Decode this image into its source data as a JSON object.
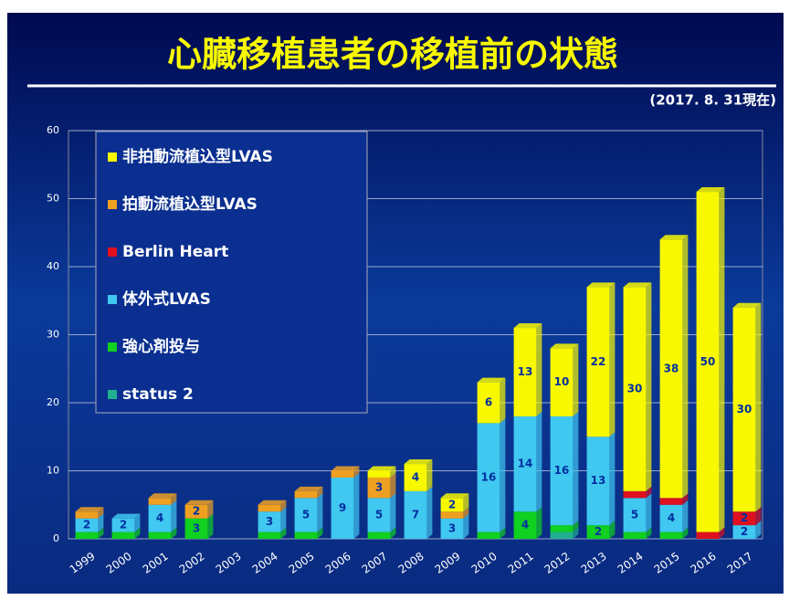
{
  "chart_data": {
    "type": "bar",
    "stacked": true,
    "title": "心臓移植患者の移植前の状態",
    "subtitle": "(2017. 8. 31現在)",
    "categories": [
      "1999",
      "2000",
      "2001",
      "2002",
      "2003",
      "2004",
      "2005",
      "2006",
      "2007",
      "2008",
      "2009",
      "2010",
      "2011",
      "2012",
      "2013",
      "2014",
      "2015",
      "2016",
      "2017"
    ],
    "series": [
      {
        "name": "status 2",
        "color": "#20b090",
        "values": [
          0,
          0,
          0,
          0,
          0,
          0,
          0,
          0,
          0,
          0,
          0,
          0,
          0,
          1,
          0,
          0,
          0,
          0,
          0
        ]
      },
      {
        "name": "強心剤投与",
        "color": "#10d020",
        "values": [
          1,
          1,
          1,
          3,
          0,
          1,
          1,
          0,
          1,
          0,
          0,
          1,
          4,
          1,
          2,
          1,
          1,
          0,
          0
        ]
      },
      {
        "name": "体外式LVAS",
        "color": "#40c8f0",
        "values": [
          2,
          2,
          4,
          0,
          0,
          3,
          5,
          9,
          5,
          7,
          3,
          16,
          14,
          16,
          13,
          5,
          4,
          0,
          2
        ]
      },
      {
        "name": "Berlin Heart",
        "color": "#e01020",
        "values": [
          0,
          0,
          0,
          0,
          0,
          0,
          0,
          0,
          0,
          0,
          0,
          0,
          0,
          0,
          0,
          1,
          1,
          1,
          2
        ]
      },
      {
        "name": "拍動流植込型LVAS",
        "color": "#f0a020",
        "values": [
          1,
          0,
          1,
          2,
          0,
          1,
          1,
          1,
          3,
          0,
          1,
          0,
          0,
          0,
          0,
          0,
          0,
          0,
          0
        ]
      },
      {
        "name": "非拍動流植込型LVAS",
        "color": "#f8f800",
        "values": [
          0,
          0,
          0,
          0,
          0,
          0,
          0,
          0,
          1,
          4,
          2,
          6,
          13,
          10,
          22,
          30,
          38,
          50,
          30
        ]
      }
    ],
    "ylim": [
      0,
      60
    ],
    "yticks": [
      0,
      10,
      20,
      30,
      40,
      50,
      60
    ],
    "grid": true
  }
}
